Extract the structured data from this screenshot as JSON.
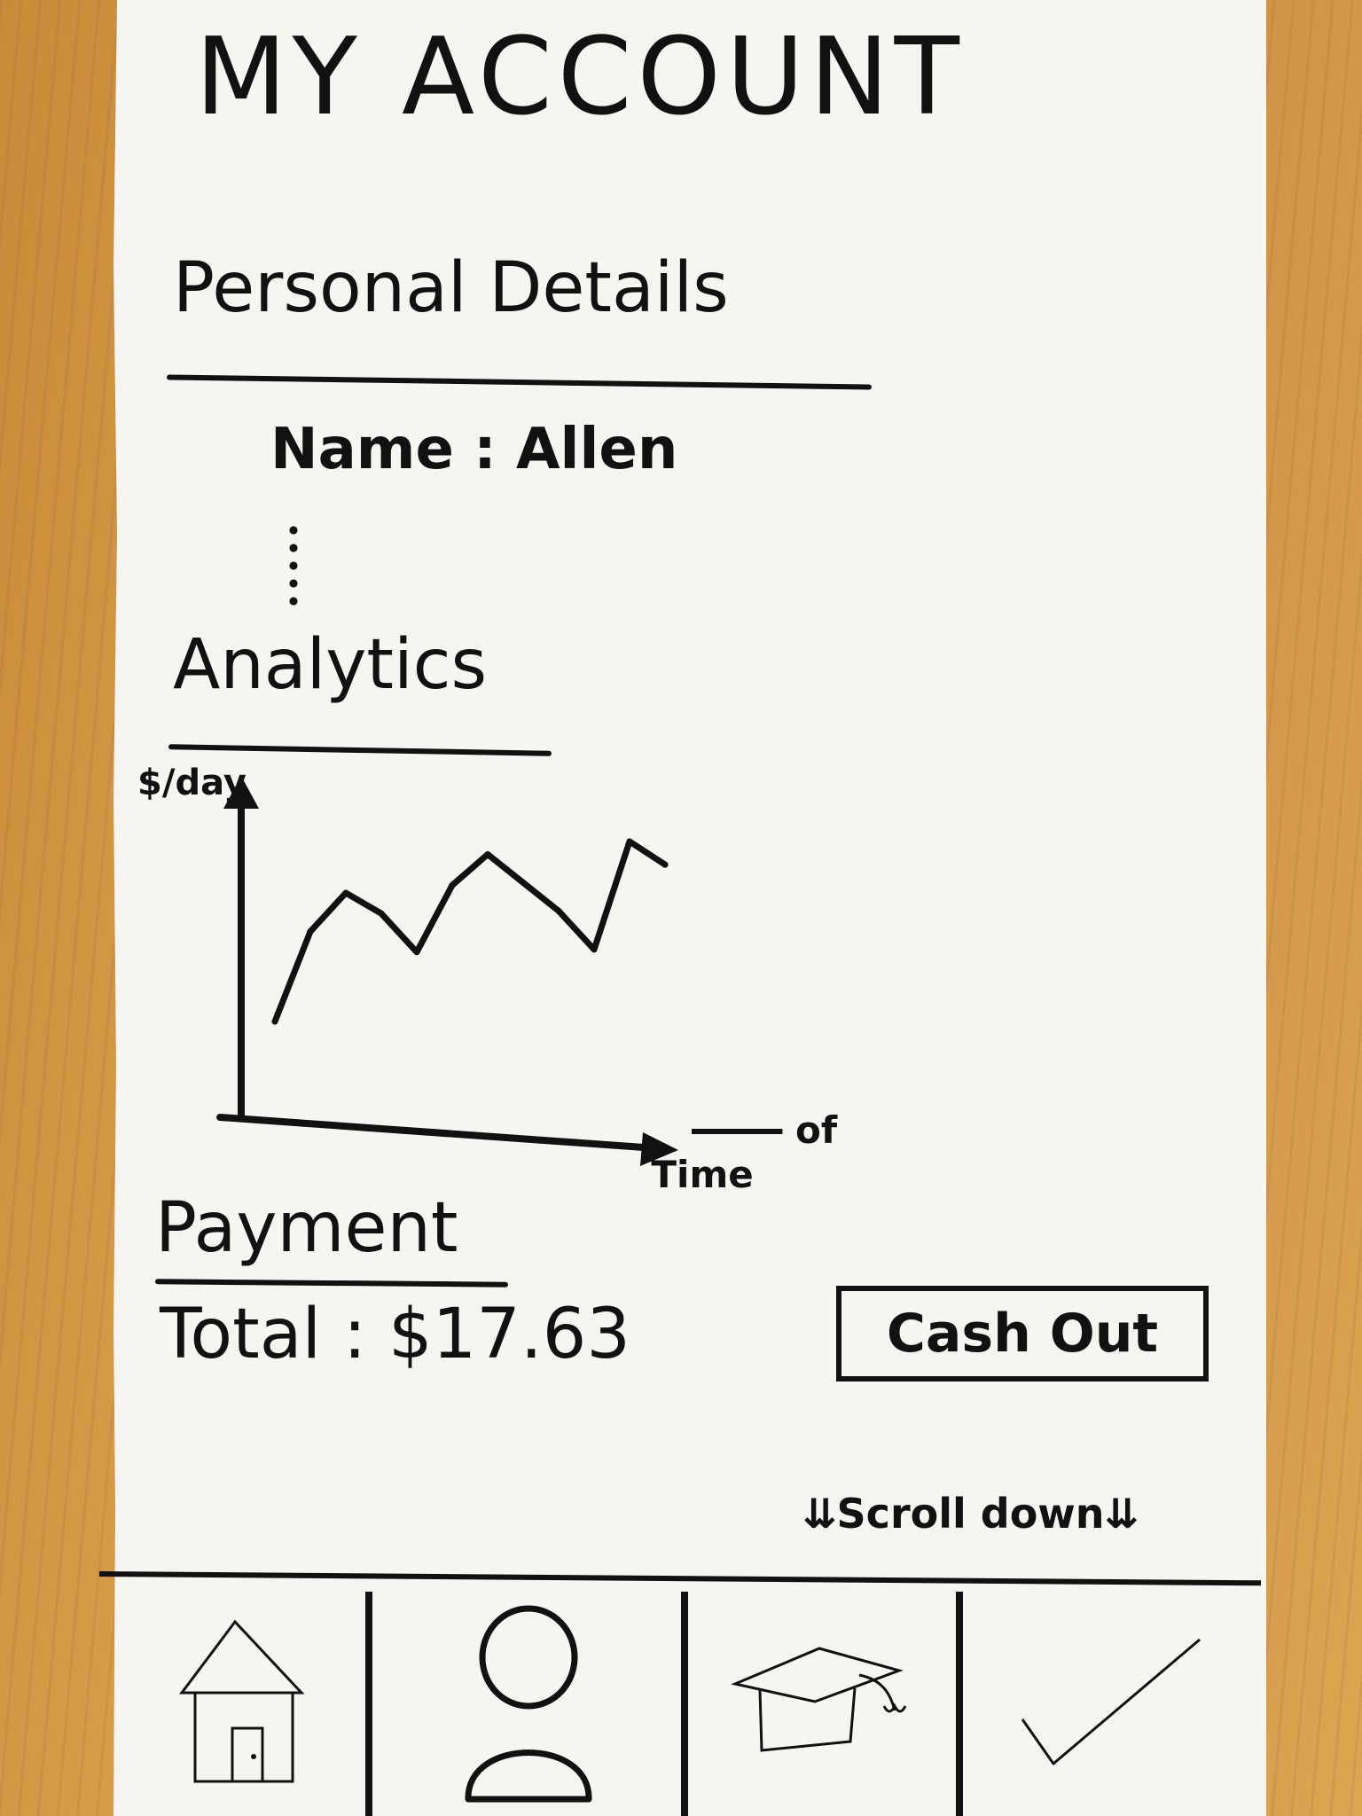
{
  "page": {
    "title": "MY ACCOUNT"
  },
  "personal_details": {
    "heading": "Personal Details",
    "name_label": "Name",
    "name_value": "Allen"
  },
  "analytics": {
    "heading": "Analytics",
    "y_axis_label": "$/day",
    "x_axis_label_top": "of",
    "x_axis_label_bottom": "Time"
  },
  "payment": {
    "heading": "Payment",
    "total_label": "Total",
    "total_value": "$17.63",
    "cash_out_label": "Cash Out"
  },
  "scroll_hint": "⇊Scroll down⇊",
  "tab_bar": {
    "tabs": [
      {
        "icon": "home-icon"
      },
      {
        "icon": "profile-icon"
      },
      {
        "icon": "graduation-cap-icon"
      },
      {
        "icon": "checkmark-icon"
      }
    ]
  },
  "chart_data": {
    "type": "line",
    "xlabel": "of Time",
    "ylabel": "$/day",
    "x": [
      1,
      2,
      3,
      4,
      5,
      6,
      7,
      8,
      9,
      10,
      11,
      12
    ],
    "values": [
      2,
      5.5,
      7,
      6.2,
      4.7,
      7.3,
      8.5,
      7.4,
      6.3,
      4.8,
      9,
      8.1
    ],
    "grid": false
  }
}
